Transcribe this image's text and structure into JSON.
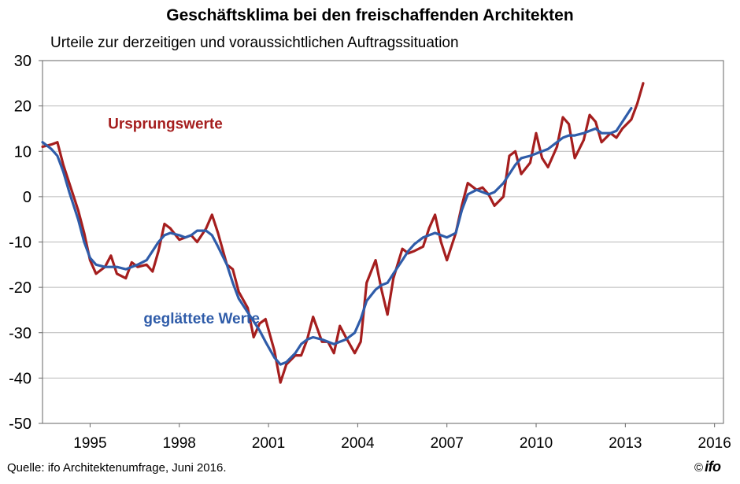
{
  "chart_data": {
    "type": "line",
    "title": "Geschäftsklima bei den freischaffenden Architekten",
    "subtitle": "Urteile zur derzeitigen und voraussichtlichen Auftragssituation",
    "xlabel": "",
    "ylabel": "",
    "ylim": [
      -50,
      30
    ],
    "xlim": [
      1993.4,
      2016.3
    ],
    "yticks": [
      30,
      20,
      10,
      0,
      -10,
      -20,
      -30,
      -40,
      -50
    ],
    "xticks": [
      {
        "value": 1995,
        "label": "1995"
      },
      {
        "value": 1998,
        "label": "1998"
      },
      {
        "value": 2001,
        "label": "2001"
      },
      {
        "value": 2004,
        "label": "2004"
      },
      {
        "value": 2007,
        "label": "2007"
      },
      {
        "value": 2010,
        "label": "2010"
      },
      {
        "value": 2013,
        "label": "2013"
      },
      {
        "value": 2016,
        "label": "2016"
      }
    ],
    "grid": true,
    "series": [
      {
        "name": "Ursprungswerte",
        "color": "#a51e1e",
        "points": [
          [
            1993.4,
            11
          ],
          [
            1993.7,
            11.5
          ],
          [
            1993.9,
            12
          ],
          [
            1994.1,
            7
          ],
          [
            1994.3,
            3
          ],
          [
            1994.6,
            -3
          ],
          [
            1994.8,
            -8
          ],
          [
            1995.0,
            -14
          ],
          [
            1995.2,
            -17
          ],
          [
            1995.5,
            -15.5
          ],
          [
            1995.7,
            -13
          ],
          [
            1995.9,
            -17
          ],
          [
            1996.2,
            -18
          ],
          [
            1996.4,
            -14.5
          ],
          [
            1996.6,
            -15.5
          ],
          [
            1996.9,
            -15
          ],
          [
            1997.1,
            -16.5
          ],
          [
            1997.3,
            -12
          ],
          [
            1997.5,
            -6
          ],
          [
            1997.7,
            -7
          ],
          [
            1998.0,
            -9.5
          ],
          [
            1998.2,
            -9
          ],
          [
            1998.4,
            -8.5
          ],
          [
            1998.6,
            -10
          ],
          [
            1998.9,
            -7
          ],
          [
            1999.1,
            -4
          ],
          [
            1999.3,
            -8
          ],
          [
            1999.6,
            -15
          ],
          [
            1999.8,
            -16
          ],
          [
            2000.0,
            -21
          ],
          [
            2000.3,
            -24.5
          ],
          [
            2000.5,
            -31
          ],
          [
            2000.7,
            -28
          ],
          [
            2000.9,
            -27
          ],
          [
            2001.2,
            -34
          ],
          [
            2001.4,
            -41
          ],
          [
            2001.6,
            -37
          ],
          [
            2001.9,
            -35
          ],
          [
            2002.1,
            -35
          ],
          [
            2002.3,
            -31.5
          ],
          [
            2002.5,
            -26.5
          ],
          [
            2002.8,
            -32
          ],
          [
            2003.0,
            -32
          ],
          [
            2003.2,
            -34.5
          ],
          [
            2003.4,
            -28.5
          ],
          [
            2003.6,
            -31
          ],
          [
            2003.9,
            -34.5
          ],
          [
            2004.1,
            -32
          ],
          [
            2004.3,
            -19
          ],
          [
            2004.6,
            -14
          ],
          [
            2004.8,
            -20.5
          ],
          [
            2005.0,
            -26
          ],
          [
            2005.2,
            -18
          ],
          [
            2005.5,
            -11.5
          ],
          [
            2005.7,
            -12.5
          ],
          [
            2005.9,
            -12
          ],
          [
            2006.2,
            -11
          ],
          [
            2006.4,
            -7
          ],
          [
            2006.6,
            -4
          ],
          [
            2006.8,
            -10
          ],
          [
            2007.0,
            -14
          ],
          [
            2007.3,
            -8
          ],
          [
            2007.5,
            -2
          ],
          [
            2007.7,
            3
          ],
          [
            2008.0,
            1.5
          ],
          [
            2008.2,
            2
          ],
          [
            2008.4,
            0.5
          ],
          [
            2008.6,
            -2
          ],
          [
            2008.9,
            0
          ],
          [
            2009.1,
            9
          ],
          [
            2009.3,
            10
          ],
          [
            2009.5,
            5
          ],
          [
            2009.8,
            7.5
          ],
          [
            2010.0,
            14
          ],
          [
            2010.2,
            8.5
          ],
          [
            2010.4,
            6.5
          ],
          [
            2010.7,
            11
          ],
          [
            2010.9,
            17.5
          ],
          [
            2011.1,
            16
          ],
          [
            2011.3,
            8.5
          ],
          [
            2011.6,
            12.5
          ],
          [
            2011.8,
            18
          ],
          [
            2012.0,
            16.5
          ],
          [
            2012.2,
            12
          ],
          [
            2012.5,
            14
          ],
          [
            2012.7,
            13
          ],
          [
            2012.9,
            15
          ],
          [
            2013.2,
            17
          ],
          [
            2013.4,
            20.5
          ],
          [
            2013.6,
            25
          ]
        ]
      },
      {
        "name": "geglättete Werte",
        "color": "#2f5ca9",
        "points": [
          [
            1993.4,
            12
          ],
          [
            1993.7,
            10.5
          ],
          [
            1993.9,
            9
          ],
          [
            1994.1,
            5.5
          ],
          [
            1994.3,
            1
          ],
          [
            1994.6,
            -5
          ],
          [
            1994.8,
            -10
          ],
          [
            1995.0,
            -13.5
          ],
          [
            1995.2,
            -15
          ],
          [
            1995.5,
            -15.5
          ],
          [
            1995.7,
            -15.5
          ],
          [
            1995.9,
            -15.5
          ],
          [
            1996.2,
            -16
          ],
          [
            1996.4,
            -15.5
          ],
          [
            1996.6,
            -15
          ],
          [
            1996.9,
            -14
          ],
          [
            1997.1,
            -12
          ],
          [
            1997.3,
            -10
          ],
          [
            1997.5,
            -8.5
          ],
          [
            1997.7,
            -8
          ],
          [
            1998.0,
            -8.5
          ],
          [
            1998.2,
            -9
          ],
          [
            1998.4,
            -8.5
          ],
          [
            1998.6,
            -7.5
          ],
          [
            1998.9,
            -7.5
          ],
          [
            1999.1,
            -8.5
          ],
          [
            1999.3,
            -11
          ],
          [
            1999.6,
            -15
          ],
          [
            1999.8,
            -19
          ],
          [
            2000.0,
            -22.5
          ],
          [
            2000.3,
            -25.5
          ],
          [
            2000.5,
            -27.5
          ],
          [
            2000.7,
            -29.5
          ],
          [
            2000.9,
            -32
          ],
          [
            2001.2,
            -35.5
          ],
          [
            2001.4,
            -37
          ],
          [
            2001.6,
            -36.5
          ],
          [
            2001.9,
            -34.5
          ],
          [
            2002.1,
            -32.5
          ],
          [
            2002.3,
            -31.5
          ],
          [
            2002.5,
            -31
          ],
          [
            2002.8,
            -31.5
          ],
          [
            2003.0,
            -32
          ],
          [
            2003.2,
            -32.5
          ],
          [
            2003.4,
            -32
          ],
          [
            2003.6,
            -31.5
          ],
          [
            2003.9,
            -30
          ],
          [
            2004.1,
            -27
          ],
          [
            2004.3,
            -23
          ],
          [
            2004.6,
            -20.5
          ],
          [
            2004.8,
            -19.5
          ],
          [
            2005.0,
            -19
          ],
          [
            2005.2,
            -17
          ],
          [
            2005.5,
            -14
          ],
          [
            2005.7,
            -12
          ],
          [
            2005.9,
            -10.5
          ],
          [
            2006.2,
            -9
          ],
          [
            2006.4,
            -8.5
          ],
          [
            2006.6,
            -8
          ],
          [
            2006.8,
            -8.5
          ],
          [
            2007.0,
            -9
          ],
          [
            2007.3,
            -8
          ],
          [
            2007.5,
            -3
          ],
          [
            2007.7,
            0.5
          ],
          [
            2008.0,
            1.5
          ],
          [
            2008.2,
            1
          ],
          [
            2008.4,
            0.5
          ],
          [
            2008.6,
            1
          ],
          [
            2008.9,
            3
          ],
          [
            2009.1,
            5
          ],
          [
            2009.3,
            7
          ],
          [
            2009.5,
            8.5
          ],
          [
            2009.8,
            9
          ],
          [
            2010.0,
            9.5
          ],
          [
            2010.2,
            10
          ],
          [
            2010.4,
            10.5
          ],
          [
            2010.7,
            12
          ],
          [
            2010.9,
            13
          ],
          [
            2011.1,
            13.5
          ],
          [
            2011.3,
            13.5
          ],
          [
            2011.6,
            14
          ],
          [
            2011.8,
            14.5
          ],
          [
            2012.0,
            15
          ],
          [
            2012.2,
            14
          ],
          [
            2012.5,
            14
          ],
          [
            2012.7,
            14.5
          ],
          [
            2012.9,
            16.5
          ],
          [
            2013.2,
            19.5
          ]
        ]
      }
    ],
    "annotations": [
      {
        "text": "Ursprungswerte",
        "color": "#a51e1e",
        "x": 1995.6,
        "y": 15
      },
      {
        "text": "geglättete Werte",
        "color": "#2f5ca9",
        "x": 1996.8,
        "y": -28
      }
    ]
  },
  "source": "Quelle: ifo Architektenumfrage, Juni 2016.",
  "logo": {
    "copyright": "©",
    "brand": "ifo"
  }
}
